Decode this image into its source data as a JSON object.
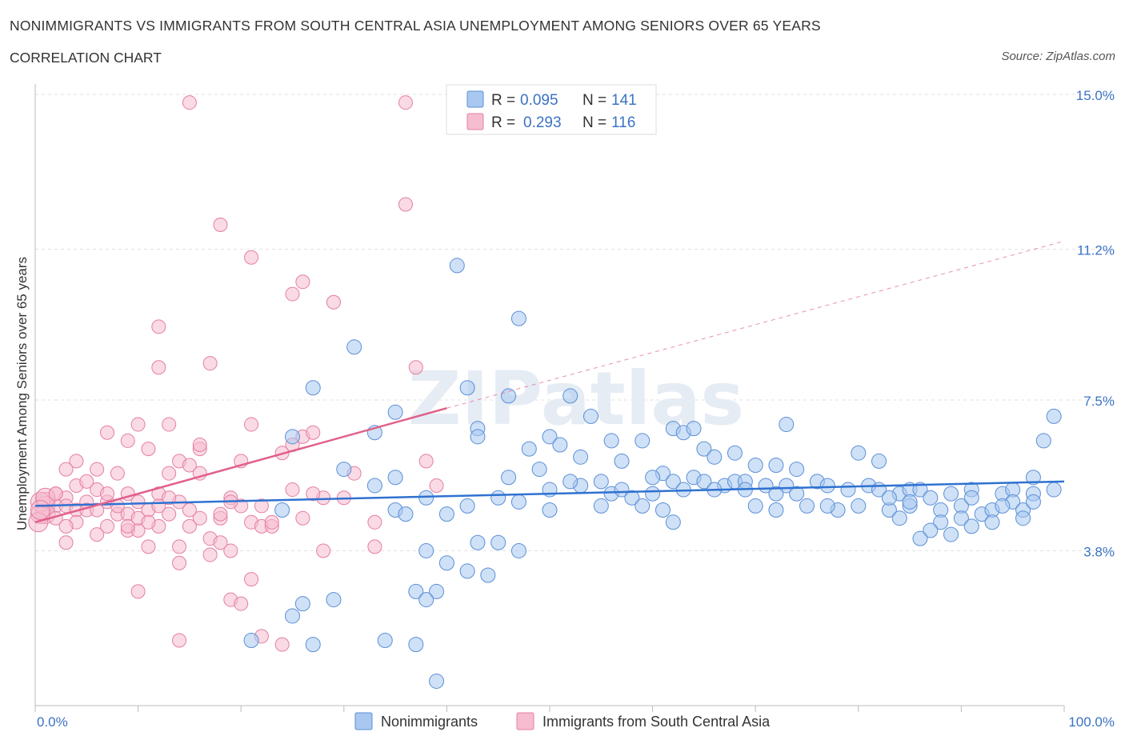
{
  "title": "NONIMMIGRANTS VS IMMIGRANTS FROM SOUTH CENTRAL ASIA UNEMPLOYMENT AMONG SENIORS OVER 65 YEARS",
  "subtitle": "CORRELATION CHART",
  "source": "Source: ZipAtlas.com",
  "watermark": "ZIPatlas",
  "colors": {
    "blue_fill": "#a8c8f0",
    "blue_stroke": "#5b8fd6",
    "blue_line": "#2f72d0",
    "pink_fill": "#f6bcd0",
    "pink_stroke": "#e47fa2",
    "pink_line": "#e0608a",
    "axis_text": "#3b72c4"
  },
  "legend_top": {
    "series1": {
      "r_label": "R = ",
      "r_value": "0.095",
      "n_label": "N = ",
      "n_value": "141"
    },
    "series2": {
      "r_label": "R = ",
      "r_value": "0.293",
      "n_label": "N = ",
      "n_value": "116"
    }
  },
  "legend_bottom": [
    "Nonimmigrants",
    "Immigrants from South Central Asia"
  ],
  "chart_data": {
    "type": "scatter",
    "title": "NONIMMIGRANTS VS IMMIGRANTS FROM SOUTH CENTRAL ASIA UNEMPLOYMENT AMONG SENIORS OVER 65 YEARS",
    "xlabel": "",
    "ylabel": "Unemployment Among Seniors over 65 years",
    "xlim": [
      0,
      100
    ],
    "ylim": [
      0,
      15
    ],
    "x_tick_labels": [
      "0.0%",
      "100.0%"
    ],
    "y_ticks": [
      3.8,
      7.5,
      11.2,
      15.0
    ],
    "y_tick_labels": [
      "3.8%",
      "7.5%",
      "11.2%",
      "15.0%"
    ],
    "series": [
      {
        "name": "Nonimmigrants",
        "R": 0.095,
        "N": 141,
        "trend": {
          "x": [
            0,
            100
          ],
          "y": [
            4.9,
            5.5
          ]
        },
        "points": [
          [
            41,
            10.8
          ],
          [
            47,
            9.5
          ],
          [
            31,
            8.8
          ],
          [
            27,
            7.8
          ],
          [
            42,
            7.8
          ],
          [
            46,
            7.6
          ],
          [
            52,
            7.6
          ],
          [
            35,
            7.2
          ],
          [
            54,
            7.1
          ],
          [
            99,
            7.1
          ],
          [
            43,
            6.8
          ],
          [
            25,
            6.6
          ],
          [
            33,
            6.7
          ],
          [
            62,
            6.8
          ],
          [
            63,
            6.7
          ],
          [
            64,
            6.8
          ],
          [
            73,
            6.9
          ],
          [
            43,
            6.6
          ],
          [
            50,
            6.6
          ],
          [
            56,
            6.5
          ],
          [
            59,
            6.5
          ],
          [
            98,
            6.5
          ],
          [
            48,
            6.3
          ],
          [
            51,
            6.4
          ],
          [
            65,
            6.3
          ],
          [
            68,
            6.2
          ],
          [
            80,
            6.2
          ],
          [
            66,
            6.1
          ],
          [
            53,
            6.1
          ],
          [
            57,
            6.0
          ],
          [
            82,
            6.0
          ],
          [
            70,
            5.9
          ],
          [
            72,
            5.9
          ],
          [
            49,
            5.8
          ],
          [
            61,
            5.7
          ],
          [
            74,
            5.8
          ],
          [
            30,
            5.8
          ],
          [
            35,
            5.6
          ],
          [
            46,
            5.6
          ],
          [
            55,
            5.5
          ],
          [
            60,
            5.6
          ],
          [
            62,
            5.5
          ],
          [
            64,
            5.6
          ],
          [
            65,
            5.5
          ],
          [
            67,
            5.4
          ],
          [
            68,
            5.5
          ],
          [
            69,
            5.5
          ],
          [
            71,
            5.4
          ],
          [
            73,
            5.4
          ],
          [
            76,
            5.5
          ],
          [
            77,
            5.4
          ],
          [
            79,
            5.3
          ],
          [
            81,
            5.4
          ],
          [
            82,
            5.3
          ],
          [
            84,
            5.2
          ],
          [
            85,
            5.3
          ],
          [
            86,
            5.3
          ],
          [
            87,
            5.1
          ],
          [
            89,
            5.2
          ],
          [
            91,
            5.3
          ],
          [
            94,
            5.2
          ],
          [
            95,
            5.3
          ],
          [
            97,
            5.2
          ],
          [
            97,
            5.6
          ],
          [
            95,
            5.0
          ],
          [
            50,
            5.3
          ],
          [
            53,
            5.4
          ],
          [
            56,
            5.2
          ],
          [
            57,
            5.3
          ],
          [
            58,
            5.1
          ],
          [
            60,
            5.2
          ],
          [
            63,
            5.3
          ],
          [
            66,
            5.3
          ],
          [
            69,
            5.3
          ],
          [
            72,
            5.2
          ],
          [
            74,
            5.2
          ],
          [
            47,
            5.0
          ],
          [
            45,
            5.1
          ],
          [
            38,
            5.1
          ],
          [
            42,
            4.9
          ],
          [
            55,
            4.9
          ],
          [
            59,
            4.9
          ],
          [
            61,
            4.8
          ],
          [
            70,
            4.9
          ],
          [
            72,
            4.8
          ],
          [
            75,
            4.9
          ],
          [
            78,
            4.8
          ],
          [
            80,
            4.9
          ],
          [
            83,
            4.8
          ],
          [
            85,
            4.9
          ],
          [
            88,
            4.8
          ],
          [
            90,
            4.9
          ],
          [
            92,
            4.7
          ],
          [
            93,
            4.8
          ],
          [
            94,
            4.9
          ],
          [
            96,
            4.8
          ],
          [
            97,
            5.0
          ],
          [
            90,
            4.6
          ],
          [
            88,
            4.5
          ],
          [
            91,
            4.4
          ],
          [
            93,
            4.5
          ],
          [
            87,
            4.3
          ],
          [
            89,
            4.2
          ],
          [
            86,
            4.1
          ],
          [
            84,
            4.6
          ],
          [
            96,
            4.6
          ],
          [
            35,
            4.8
          ],
          [
            36,
            4.7
          ],
          [
            24,
            4.8
          ],
          [
            40,
            4.7
          ],
          [
            62,
            4.5
          ],
          [
            45,
            4.0
          ],
          [
            43,
            4.0
          ],
          [
            47,
            3.8
          ],
          [
            38,
            3.8
          ],
          [
            42,
            3.3
          ],
          [
            40,
            3.5
          ],
          [
            44,
            3.2
          ],
          [
            37,
            2.8
          ],
          [
            39,
            2.8
          ],
          [
            38,
            2.6
          ],
          [
            26,
            2.5
          ],
          [
            29,
            2.6
          ],
          [
            25,
            2.2
          ],
          [
            21,
            1.6
          ],
          [
            27,
            1.5
          ],
          [
            34,
            1.6
          ],
          [
            37,
            1.5
          ],
          [
            39,
            0.6
          ],
          [
            33,
            5.4
          ],
          [
            50,
            4.8
          ],
          [
            77,
            4.9
          ],
          [
            52,
            5.5
          ],
          [
            83,
            5.1
          ],
          [
            85,
            5.0
          ],
          [
            99,
            5.3
          ],
          [
            91,
            5.1
          ]
        ]
      },
      {
        "name": "Immigrants from South Central Asia",
        "R": 0.293,
        "N": 116,
        "trend": {
          "x": [
            0,
            40
          ],
          "y": [
            4.5,
            7.3
          ]
        },
        "trend_dashed": {
          "x": [
            40,
            100
          ],
          "y": [
            7.3,
            11.4
          ]
        },
        "points": [
          [
            15,
            14.8
          ],
          [
            36,
            14.8
          ],
          [
            36,
            12.3
          ],
          [
            18,
            11.8
          ],
          [
            21,
            11.0
          ],
          [
            26,
            10.4
          ],
          [
            25,
            10.1
          ],
          [
            29,
            9.9
          ],
          [
            12,
            9.3
          ],
          [
            17,
            8.4
          ],
          [
            12,
            8.3
          ],
          [
            37,
            8.3
          ],
          [
            10,
            6.9
          ],
          [
            13,
            6.9
          ],
          [
            21,
            6.9
          ],
          [
            7,
            6.7
          ],
          [
            9,
            6.5
          ],
          [
            26,
            6.6
          ],
          [
            27,
            6.7
          ],
          [
            16,
            6.3
          ],
          [
            11,
            6.3
          ],
          [
            20,
            6.0
          ],
          [
            14,
            6.0
          ],
          [
            15,
            5.9
          ],
          [
            38,
            6.0
          ],
          [
            3,
            5.8
          ],
          [
            6,
            5.8
          ],
          [
            8,
            5.7
          ],
          [
            13,
            5.7
          ],
          [
            16,
            5.7
          ],
          [
            31,
            5.7
          ],
          [
            4,
            5.4
          ],
          [
            6,
            5.3
          ],
          [
            9,
            5.2
          ],
          [
            12,
            5.2
          ],
          [
            19,
            5.1
          ],
          [
            25,
            5.3
          ],
          [
            28,
            5.1
          ],
          [
            39,
            5.4
          ],
          [
            2,
            5.2
          ],
          [
            3,
            5.1
          ],
          [
            5,
            5.0
          ],
          [
            7,
            5.0
          ],
          [
            10,
            5.0
          ],
          [
            14,
            5.0
          ],
          [
            20,
            4.9
          ],
          [
            1,
            5.0
          ],
          [
            1,
            4.9
          ],
          [
            2,
            4.9
          ],
          [
            3,
            4.9
          ],
          [
            4,
            4.8
          ],
          [
            5,
            4.8
          ],
          [
            6,
            4.8
          ],
          [
            8,
            4.7
          ],
          [
            9,
            4.7
          ],
          [
            11,
            4.8
          ],
          [
            13,
            4.7
          ],
          [
            16,
            4.6
          ],
          [
            18,
            4.6
          ],
          [
            21,
            4.5
          ],
          [
            22,
            4.4
          ],
          [
            23,
            4.4
          ],
          [
            26,
            4.6
          ],
          [
            33,
            4.5
          ],
          [
            1,
            4.7
          ],
          [
            2,
            4.6
          ],
          [
            0.5,
            5.0
          ],
          [
            0.5,
            4.7
          ],
          [
            0.3,
            4.5
          ],
          [
            4,
            4.5
          ],
          [
            7,
            4.4
          ],
          [
            9,
            4.3
          ],
          [
            10,
            4.3
          ],
          [
            12,
            4.4
          ],
          [
            15,
            4.4
          ],
          [
            17,
            4.1
          ],
          [
            18,
            4.0
          ],
          [
            14,
            3.9
          ],
          [
            11,
            3.9
          ],
          [
            17,
            3.7
          ],
          [
            19,
            3.8
          ],
          [
            3,
            4.0
          ],
          [
            28,
            3.8
          ],
          [
            33,
            3.9
          ],
          [
            14,
            3.5
          ],
          [
            21,
            3.1
          ],
          [
            10,
            2.8
          ],
          [
            19,
            2.6
          ],
          [
            20,
            2.5
          ],
          [
            22,
            1.7
          ],
          [
            14,
            1.6
          ],
          [
            24,
            1.5
          ],
          [
            1,
            5.1
          ],
          [
            2,
            5.2
          ],
          [
            0.5,
            4.8
          ],
          [
            5,
            5.5
          ],
          [
            16,
            6.4
          ],
          [
            24,
            6.2
          ],
          [
            4,
            6.0
          ],
          [
            7,
            5.2
          ],
          [
            8,
            4.9
          ],
          [
            10,
            4.6
          ],
          [
            12,
            4.9
          ],
          [
            13,
            5.1
          ],
          [
            19,
            5.0
          ],
          [
            22,
            4.9
          ],
          [
            27,
            5.2
          ],
          [
            30,
            5.1
          ],
          [
            3,
            4.4
          ],
          [
            6,
            4.2
          ],
          [
            9,
            4.4
          ],
          [
            11,
            4.5
          ],
          [
            15,
            4.8
          ],
          [
            18,
            4.7
          ],
          [
            23,
            4.5
          ],
          [
            25,
            6.4
          ]
        ]
      }
    ]
  }
}
